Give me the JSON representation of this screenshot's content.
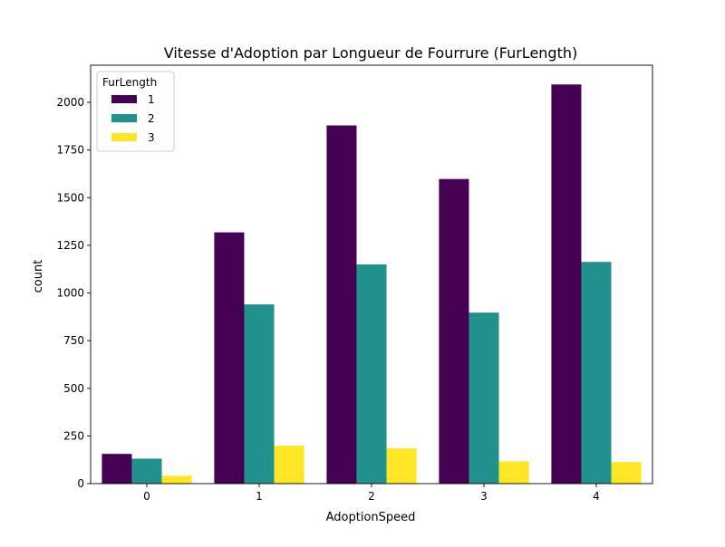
{
  "chart_data": {
    "type": "bar",
    "title": "Vitesse d'Adoption par Longueur de Fourrure (FurLength)",
    "xlabel": "AdoptionSpeed",
    "ylabel": "count",
    "categories": [
      "0",
      "1",
      "2",
      "3",
      "4"
    ],
    "ylim": [
      0,
      2195
    ],
    "yticks": [
      "0",
      "250",
      "500",
      "750",
      "1000",
      "1250",
      "1500",
      "1750",
      "2000"
    ],
    "grid": false,
    "legend": {
      "title": "FurLength",
      "placement": "top-left"
    },
    "series": [
      {
        "name": "1",
        "color": "#440154",
        "values": [
          156,
          1318,
          1879,
          1598,
          2094
        ]
      },
      {
        "name": "2",
        "color": "#21918c",
        "values": [
          131,
          940,
          1150,
          897,
          1163
        ]
      },
      {
        "name": "3",
        "color": "#fde725",
        "values": [
          41,
          199,
          185,
          117,
          113
        ]
      }
    ]
  }
}
